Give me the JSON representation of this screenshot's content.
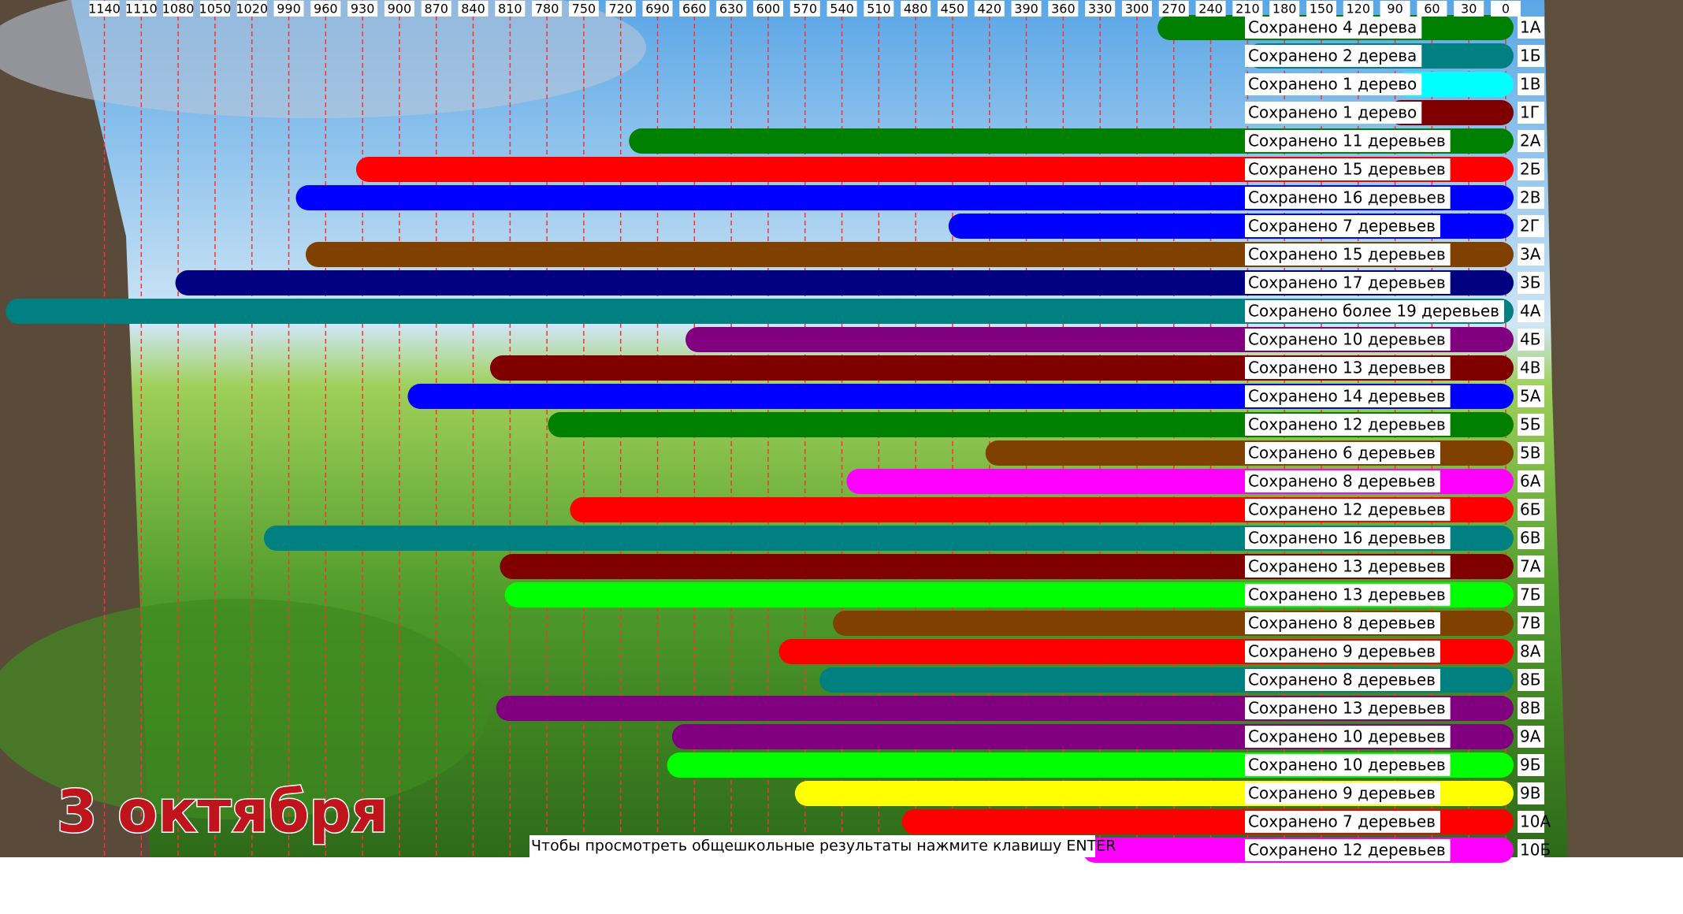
{
  "chart_data": {
    "type": "bar",
    "orientation": "horizontal",
    "x_reversed": true,
    "title": "3 октября",
    "note": "Чтобы просмотреть общешкольные результаты нажмите клавишу ENTER",
    "categories": [
      "1А",
      "1Б",
      "1В",
      "1Г",
      "2А",
      "2Б",
      "2В",
      "2Г",
      "3А",
      "3Б",
      "4А",
      "4Б",
      "4В",
      "5А",
      "5Б",
      "5В",
      "6А",
      "6Б",
      "6В",
      "7А",
      "7Б",
      "7В",
      "8А",
      "8Б",
      "8В",
      "9А",
      "9Б",
      "9В",
      "10А",
      "10Б"
    ],
    "values": [
      273,
      200,
      80,
      85,
      703,
      925,
      974,
      443,
      966,
      1072,
      1210,
      657,
      816,
      883,
      769,
      413,
      526,
      751,
      1000,
      808,
      804,
      537,
      581,
      548,
      811,
      668,
      672,
      568,
      481,
      334
    ],
    "annotations": [
      "Сохранено 4 дерева",
      "Сохранено 2 дерева",
      "Сохранено 1 дерево",
      "Сохранено 1 дерево",
      "Сохранено 11 деревьев",
      "Сохранено 15 деревьев",
      "Сохранено 16 деревьев",
      "Сохранено 7 деревьев",
      "Сохранено 15 деревьев",
      "Сохранено 17 деревьев",
      "Сохранено более 19 деревьев",
      "Сохранено 10 деревьев",
      "Сохранено 13 деревьев",
      "Сохранено 14 деревьев",
      "Сохранено 12 деревьев",
      "Сохранено 6 деревьев",
      "Сохранено 8 деревьев",
      "Сохранено 12 деревьев",
      "Сохранено 16 деревьев",
      "Сохранено 13 деревьев",
      "Сохранено 13 деревьев",
      "Сохранено 8 деревьев",
      "Сохранено 9 деревьев",
      "Сохранено 8 деревьев",
      "Сохранено 13 деревьев",
      "Сохранено 10 деревьев",
      "Сохранено 10 деревьев",
      "Сохранено 9 деревьев",
      "Сохранено 7 деревьев",
      "Сохранено 12 деревьев"
    ],
    "colors": [
      "#008000",
      "#008080",
      "#00ffff",
      "#800000",
      "#008000",
      "#ff0000",
      "#0000ff",
      "#0000ff",
      "#804000",
      "#000080",
      "#008080",
      "#800080",
      "#800000",
      "#0000ff",
      "#008000",
      "#804000",
      "#ff00ff",
      "#ff0000",
      "#008080",
      "#800000",
      "#00ff00",
      "#804000",
      "#ff0000",
      "#008080",
      "#800080",
      "#800080",
      "#00ff00",
      "#ffff00",
      "#ff0000",
      "#ff00ff"
    ],
    "xlim": [
      0,
      1223
    ],
    "xticks": [
      0,
      30,
      60,
      90,
      120,
      150,
      180,
      210,
      240,
      270,
      300,
      330,
      360,
      390,
      420,
      450,
      480,
      510,
      540,
      570,
      600,
      630,
      660,
      690,
      720,
      750,
      780,
      810,
      840,
      870,
      900,
      930,
      960,
      990,
      1020,
      1050,
      1080,
      1110,
      1140
    ],
    "grid": true
  }
}
